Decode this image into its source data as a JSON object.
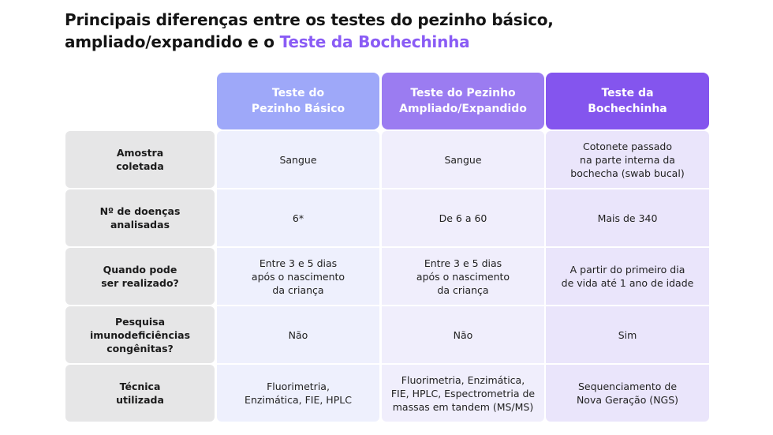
{
  "title": {
    "line1": "Principais diferenças entre os testes do pezinho básico,",
    "line2_prefix": "ampliado/expandido e o ",
    "line2_highlight": "Teste da Bochechinha"
  },
  "columns": [
    "Teste do\nPezinho Básico",
    "Teste do Pezinho\nAmpliado/Expandido",
    "Teste da\nBochechinha"
  ],
  "rows": [
    {
      "label": "Amostra\ncoletada",
      "values": [
        "Sangue",
        "Sangue",
        "Cotonete passado\nna parte interna da\nbochecha (swab bucal)"
      ]
    },
    {
      "label": "Nº de doenças\nanalisadas",
      "values": [
        "6*",
        "De 6 a 60",
        "Mais de 340"
      ]
    },
    {
      "label": "Quando pode\nser realizado?",
      "values": [
        "Entre 3 e 5 dias\napós o nascimento\nda criança",
        "Entre 3 e 5 dias\napós o nascimento\nda criança",
        "A partir do primeiro dia\nde vida até 1 ano de idade"
      ]
    },
    {
      "label": "Pesquisa\nimunodeficiências\ncongênitas?",
      "values": [
        "Não",
        "Não",
        "Sim"
      ]
    },
    {
      "label": "Técnica\nutilizada",
      "values": [
        "Fluorimetria,\nEnzimática, FIE, HPLC",
        "Fluorimetria, Enzimática,\nFIE, HPLC, Espectrometria de\nmassas em tandem (MS/MS)",
        "Sequenciamento de\nNova Geração (NGS)"
      ]
    }
  ],
  "colors": {
    "highlight": "#8a5cf5",
    "header_basic": "#9ea8f9",
    "header_expanded": "#9b7cf1",
    "header_bochechinha": "#8455ee",
    "row_label_bg": "#e6e6e7"
  }
}
